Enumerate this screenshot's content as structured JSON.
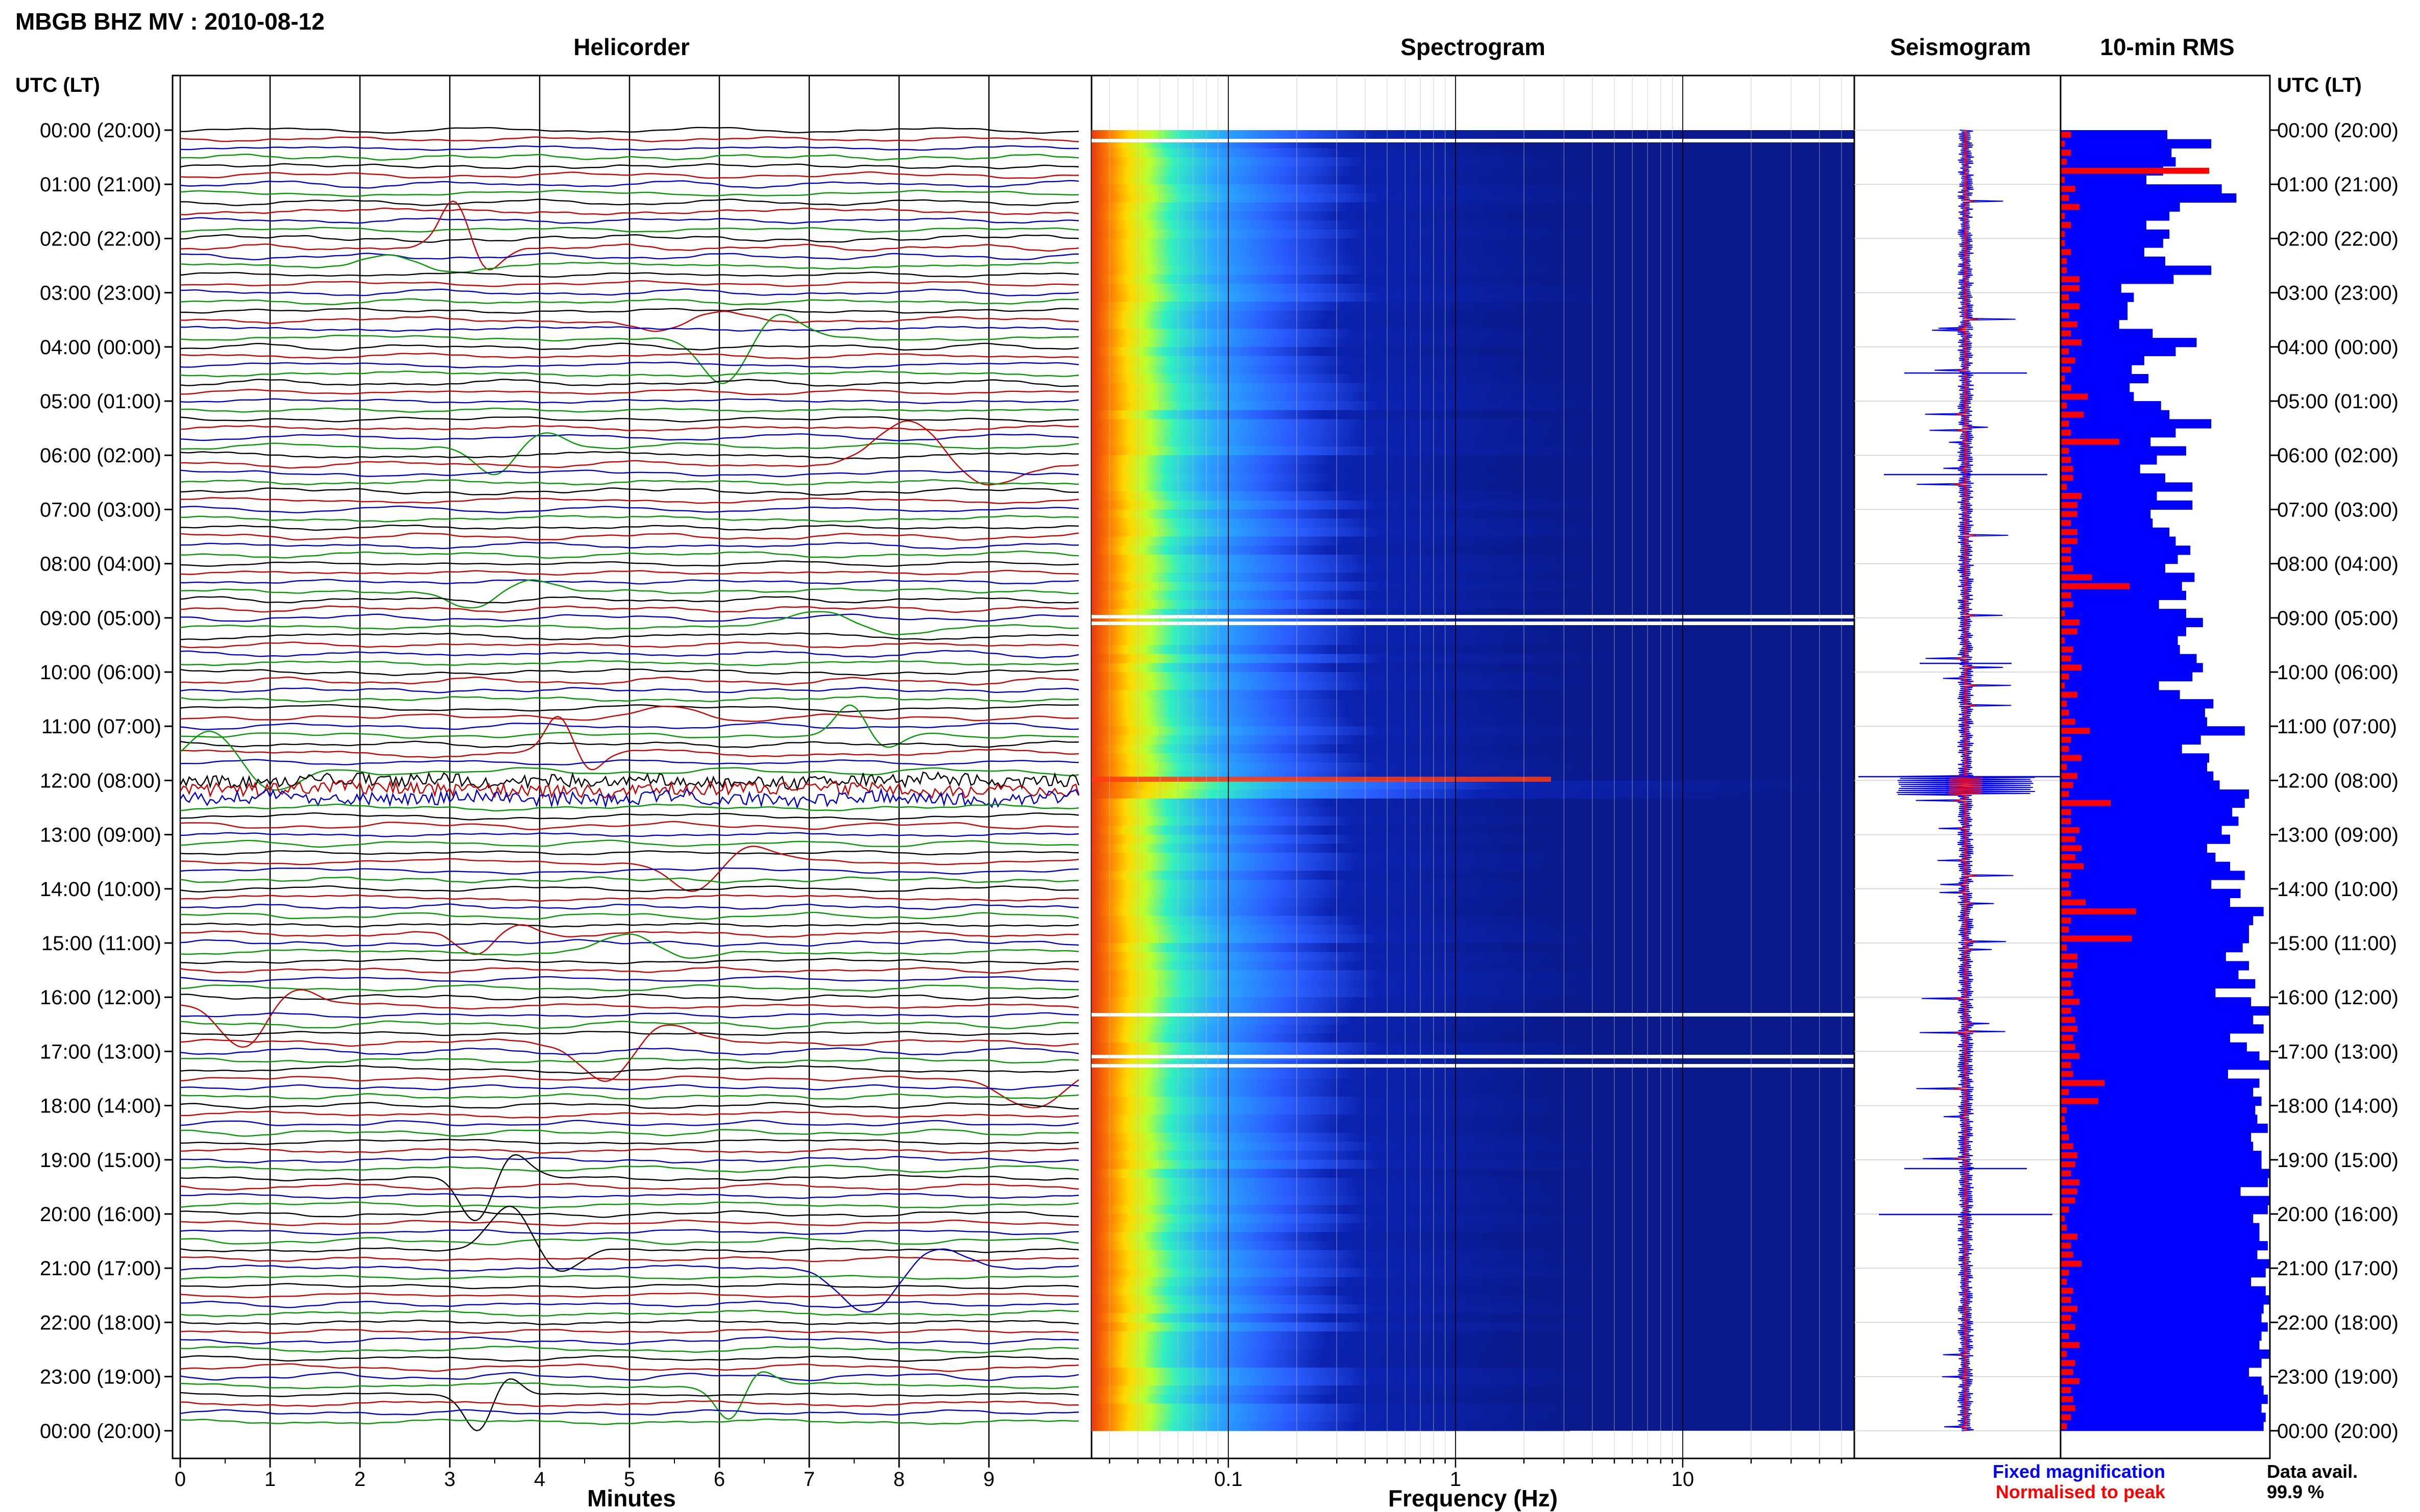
{
  "header": {
    "station_title": "MBGB BHZ MV : 2010-08-12",
    "utc_label_left": "UTC (LT)",
    "utc_label_right": "UTC (LT)"
  },
  "panels": {
    "helicorder_title": "Helicorder",
    "spectrogram_title": "Spectrogram",
    "seismogram_title": "Seismogram",
    "rms_title": "10-min RMS"
  },
  "legend": {
    "fixed_magnification": "Fixed magnification",
    "normalised_to_peak": "Normalised to peak",
    "data_avail_label": "Data avail.",
    "data_avail_value": "99.9 %"
  },
  "colors": {
    "frame": "#000000",
    "trace_colors": [
      "#000000",
      "#cc0000",
      "#0000cc",
      "#009900"
    ],
    "fixed_magnification": "#0000ff",
    "normalised_to_peak": "#ff0000",
    "spectrogram_background": "#0a1a8c",
    "rms_fill": "#0000ff",
    "rms_normalised": "#ff0000"
  },
  "chart_data": [
    {
      "type": "line",
      "panel": "helicorder",
      "title": "Helicorder",
      "xlabel": "Minutes",
      "x_ticks": [
        "0",
        "1",
        "2",
        "3",
        "4",
        "5",
        "6",
        "7",
        "8",
        "9"
      ],
      "xlim": [
        0,
        10
      ],
      "time_labels": [
        "00:00 (20:00)",
        "01:00 (21:00)",
        "02:00 (22:00)",
        "03:00 (23:00)",
        "04:00 (00:00)",
        "05:00 (01:00)",
        "06:00 (02:00)",
        "07:00 (03:00)",
        "08:00 (04:00)",
        "09:00 (05:00)",
        "10:00 (06:00)",
        "11:00 (07:00)",
        "12:00 (08:00)",
        "13:00 (09:00)",
        "14:00 (10:00)",
        "15:00 (11:00)",
        "16:00 (12:00)",
        "17:00 (13:00)",
        "18:00 (14:00)",
        "19:00 (15:00)",
        "20:00 (16:00)",
        "21:00 (17:00)",
        "22:00 (18:00)",
        "23:00 (19:00)",
        "00:00 (20:00)"
      ],
      "lines_per_hour": 6,
      "line_count": 144,
      "grid": true
    },
    {
      "type": "heatmap",
      "panel": "spectrogram",
      "title": "Spectrogram",
      "xlabel": "Frequency (Hz)",
      "x_scale": "log",
      "x_ticks": [
        "0.1",
        "1",
        "10"
      ],
      "xlim": [
        0.025,
        50
      ],
      "rows": 144,
      "grid": true
    },
    {
      "type": "line",
      "panel": "seismogram",
      "title": "Seismogram",
      "series": [
        {
          "name": "Fixed magnification",
          "color": "#0000ff"
        },
        {
          "name": "Normalised to peak",
          "color": "#ff0000"
        }
      ]
    },
    {
      "type": "bar",
      "panel": "rms",
      "title": "10-min RMS",
      "orientation": "horizontal",
      "rows": 144,
      "fixed_magnification": [
        0.51,
        0.72,
        0.53,
        0.55,
        0.49,
        0.41,
        0.77,
        0.84,
        0.57,
        0.52,
        0.41,
        0.52,
        0.49,
        0.4,
        0.5,
        0.72,
        0.54,
        0.29,
        0.35,
        0.32,
        0.32,
        0.28,
        0.44,
        0.65,
        0.55,
        0.4,
        0.34,
        0.42,
        0.33,
        0.35,
        0.48,
        0.52,
        0.72,
        0.55,
        0.43,
        0.6,
        0.46,
        0.38,
        0.5,
        0.63,
        0.46,
        0.63,
        0.43,
        0.44,
        0.52,
        0.55,
        0.62,
        0.56,
        0.5,
        0.64,
        0.58,
        0.6,
        0.47,
        0.6,
        0.68,
        0.6,
        0.56,
        0.57,
        0.65,
        0.68,
        0.63,
        0.47,
        0.57,
        0.73,
        0.69,
        0.7,
        0.88,
        0.67,
        0.58,
        0.71,
        0.7,
        0.73,
        0.76,
        0.9,
        0.88,
        0.82,
        0.85,
        0.77,
        0.81,
        0.7,
        0.74,
        0.81,
        0.88,
        0.72,
        0.86,
        0.81,
        0.97,
        0.92,
        0.9,
        0.9,
        0.87,
        0.79,
        0.9,
        0.85,
        0.93,
        0.74,
        0.91,
        1.0,
        0.92,
        0.97,
        0.81,
        0.89,
        0.95,
        1.0,
        0.8,
        0.95,
        0.92,
        0.96,
        0.93,
        0.94,
        0.99,
        0.91,
        0.92,
        0.96,
        0.96,
        1.0,
        0.99,
        0.86,
        1.0,
        0.99,
        0.92,
        0.95,
        0.95,
        0.99,
        0.94,
        1.0,
        0.98,
        0.91,
        0.98,
        1.0,
        0.97,
        0.96,
        0.99,
        0.96,
        0.95,
        1.0,
        0.96,
        0.9,
        0.96,
        0.97,
        0.99,
        0.96,
        0.98,
        0.97
      ],
      "normalised_to_peak": [
        0.05,
        0.02,
        0.05,
        0.03,
        0.71,
        0.02,
        0.07,
        0.04,
        0.09,
        0.02,
        0.05,
        0.02,
        0.02,
        0.05,
        0.03,
        0.03,
        0.09,
        0.09,
        0.04,
        0.09,
        0.04,
        0.08,
        0.05,
        0.1,
        0.04,
        0.07,
        0.05,
        0.02,
        0.05,
        0.13,
        0.03,
        0.11,
        0.04,
        0.05,
        0.28,
        0.04,
        0.05,
        0.06,
        0.06,
        0.03,
        0.1,
        0.08,
        0.08,
        0.05,
        0.08,
        0.08,
        0.05,
        0.05,
        0.06,
        0.15,
        0.33,
        0.05,
        0.06,
        0.02,
        0.09,
        0.08,
        0.02,
        0.06,
        0.05,
        0.1,
        0.04,
        0.02,
        0.08,
        0.03,
        0.04,
        0.07,
        0.14,
        0.05,
        0.04,
        0.1,
        0.03,
        0.08,
        0.06,
        0.04,
        0.24,
        0.05,
        0.05,
        0.09,
        0.07,
        0.1,
        0.07,
        0.11,
        0.05,
        0.04,
        0.05,
        0.12,
        0.36,
        0.05,
        0.04,
        0.34,
        0.03,
        0.08,
        0.08,
        0.06,
        0.05,
        0.06,
        0.09,
        0.05,
        0.07,
        0.08,
        0.06,
        0.07,
        0.09,
        0.05,
        0.06,
        0.21,
        0.04,
        0.18,
        0.03,
        0.02,
        0.03,
        0.04,
        0.06,
        0.08,
        0.07,
        0.05,
        0.09,
        0.08,
        0.07,
        0.04,
        0.02,
        0.03,
        0.08,
        0.05,
        0.06,
        0.1,
        0.04,
        0.03,
        0.06,
        0.05,
        0.08,
        0.05,
        0.07,
        0.04,
        0.09,
        0.03,
        0.07,
        0.06,
        0.09,
        0.05,
        0.06,
        0.07,
        0.05,
        0.03
      ]
    }
  ]
}
